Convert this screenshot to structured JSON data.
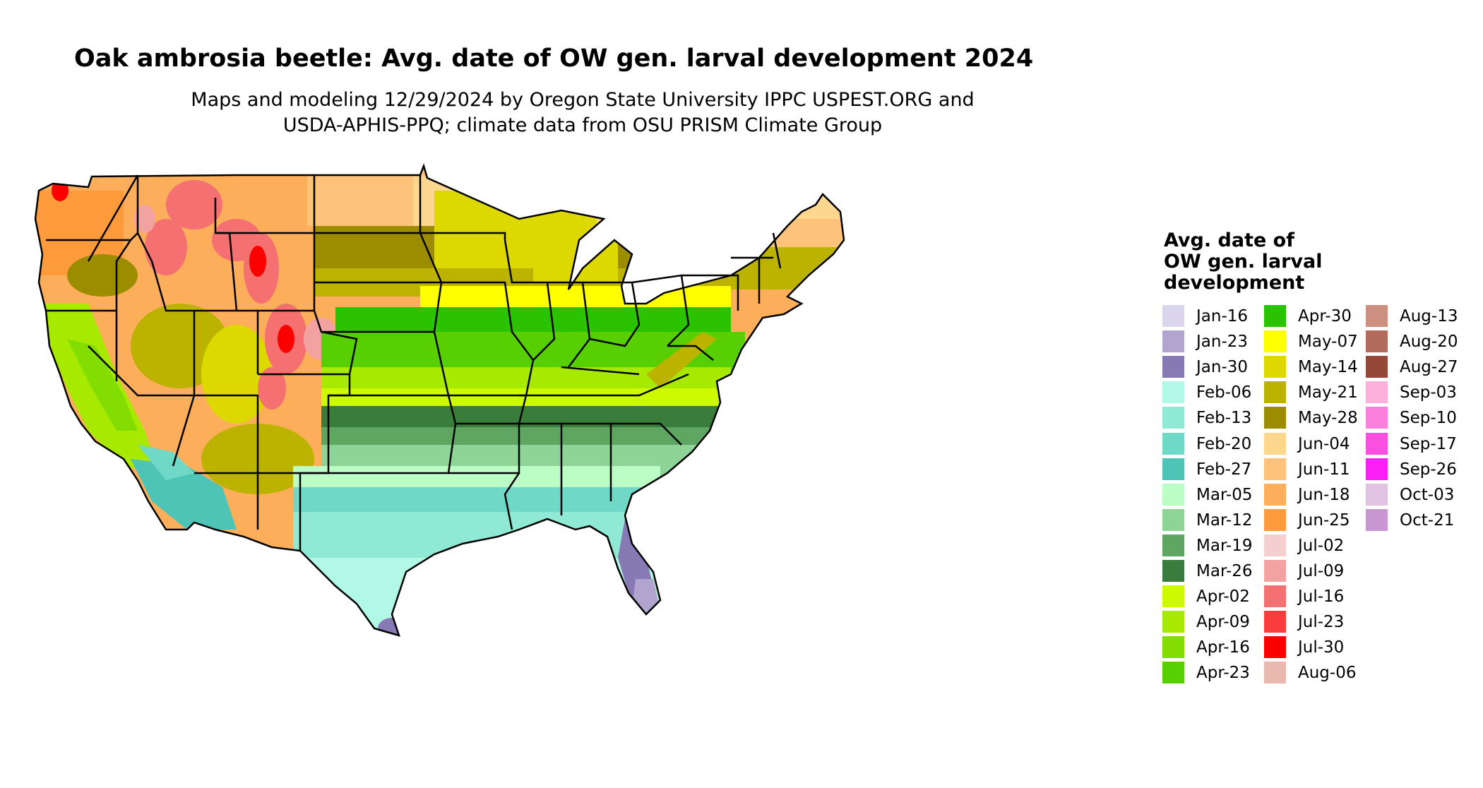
{
  "title": "Oak ambrosia beetle: Avg. date of OW gen. larval development 2024",
  "subtitle_line1": "Maps and modeling 12/29/2024 by Oregon State University IPPC USPEST.ORG and",
  "subtitle_line2": "USDA-APHIS-PPQ; climate data from OSU PRISM Climate Group",
  "legend": {
    "title_lines": [
      "Avg. date of",
      "OW gen. larval",
      "development"
    ],
    "columns": [
      [
        {
          "label": "Jan-16",
          "color": "#dcd6ec"
        },
        {
          "label": "Jan-23",
          "color": "#b1a5cf"
        },
        {
          "label": "Jan-30",
          "color": "#8779b4"
        },
        {
          "label": "Feb-06",
          "color": "#b1f9e6"
        },
        {
          "label": "Feb-13",
          "color": "#90e9d4"
        },
        {
          "label": "Feb-20",
          "color": "#70d8c7"
        },
        {
          "label": "Feb-27",
          "color": "#4ec4b6"
        },
        {
          "label": "Mar-05",
          "color": "#bcfcc5"
        },
        {
          "label": "Mar-12",
          "color": "#8fd497"
        },
        {
          "label": "Mar-19",
          "color": "#60a663"
        },
        {
          "label": "Mar-26",
          "color": "#3a7c3c"
        },
        {
          "label": "Apr-02",
          "color": "#cdfa00"
        },
        {
          "label": "Apr-09",
          "color": "#a7ea00"
        },
        {
          "label": "Apr-16",
          "color": "#83dd00"
        },
        {
          "label": "Apr-23",
          "color": "#57cf00"
        }
      ],
      [
        {
          "label": "Apr-30",
          "color": "#2bc300"
        },
        {
          "label": "May-07",
          "color": "#ffff00"
        },
        {
          "label": "May-14",
          "color": "#dcd800"
        },
        {
          "label": "May-21",
          "color": "#bcb300"
        },
        {
          "label": "May-28",
          "color": "#9b8c00"
        },
        {
          "label": "Jun-04",
          "color": "#fdd78d"
        },
        {
          "label": "Jun-11",
          "color": "#fdc37a"
        },
        {
          "label": "Jun-18",
          "color": "#fdae5a"
        },
        {
          "label": "Jun-25",
          "color": "#fd9a3c"
        },
        {
          "label": "Jul-02",
          "color": "#f5cfcf"
        },
        {
          "label": "Jul-09",
          "color": "#f3a2a2"
        },
        {
          "label": "Jul-16",
          "color": "#f57171"
        },
        {
          "label": "Jul-23",
          "color": "#f93d3d"
        },
        {
          "label": "Jul-30",
          "color": "#fc0000"
        },
        {
          "label": "Aug-06",
          "color": "#e8baaf"
        }
      ],
      [
        {
          "label": "Aug-13",
          "color": "#cd8f80"
        },
        {
          "label": "Aug-20",
          "color": "#b26b5c"
        },
        {
          "label": "Aug-27",
          "color": "#954838"
        },
        {
          "label": "Sep-03",
          "color": "#fdb0dc"
        },
        {
          "label": "Sep-10",
          "color": "#fc7fdd"
        },
        {
          "label": "Sep-17",
          "color": "#fb4fe0"
        },
        {
          "label": "Sep-26",
          "color": "#fa20f5"
        },
        {
          "label": "Oct-03",
          "color": "#e2c2e1"
        },
        {
          "label": "Oct-21",
          "color": "#c896d1"
        }
      ]
    ]
  },
  "map_bands": [
    {
      "region": "northern-rockies",
      "date": "Jul-16",
      "color": "#f57171"
    },
    {
      "region": "northern-plains",
      "date": "Jun-11",
      "color": "#fdc37a"
    },
    {
      "region": "great-basin",
      "date": "Jun-18",
      "color": "#fdae5a"
    },
    {
      "region": "upper-midwest",
      "date": "May-21",
      "color": "#bcb300"
    },
    {
      "region": "corn-belt",
      "date": "May-07",
      "color": "#ffff00"
    },
    {
      "region": "mid-south",
      "date": "Apr-23",
      "color": "#57cf00"
    },
    {
      "region": "southern-plains",
      "date": "Mar-26",
      "color": "#3a7c3c"
    },
    {
      "region": "gulf-coast",
      "date": "Feb-20",
      "color": "#70d8c7"
    },
    {
      "region": "south-florida",
      "date": "Jan-30",
      "color": "#8779b4"
    },
    {
      "region": "california-coast",
      "date": "Apr-09",
      "color": "#a7ea00"
    },
    {
      "region": "desert-southwest",
      "date": "Feb-27",
      "color": "#4ec4b6"
    },
    {
      "region": "new-england",
      "date": "Jun-04",
      "color": "#fdd78d"
    }
  ]
}
